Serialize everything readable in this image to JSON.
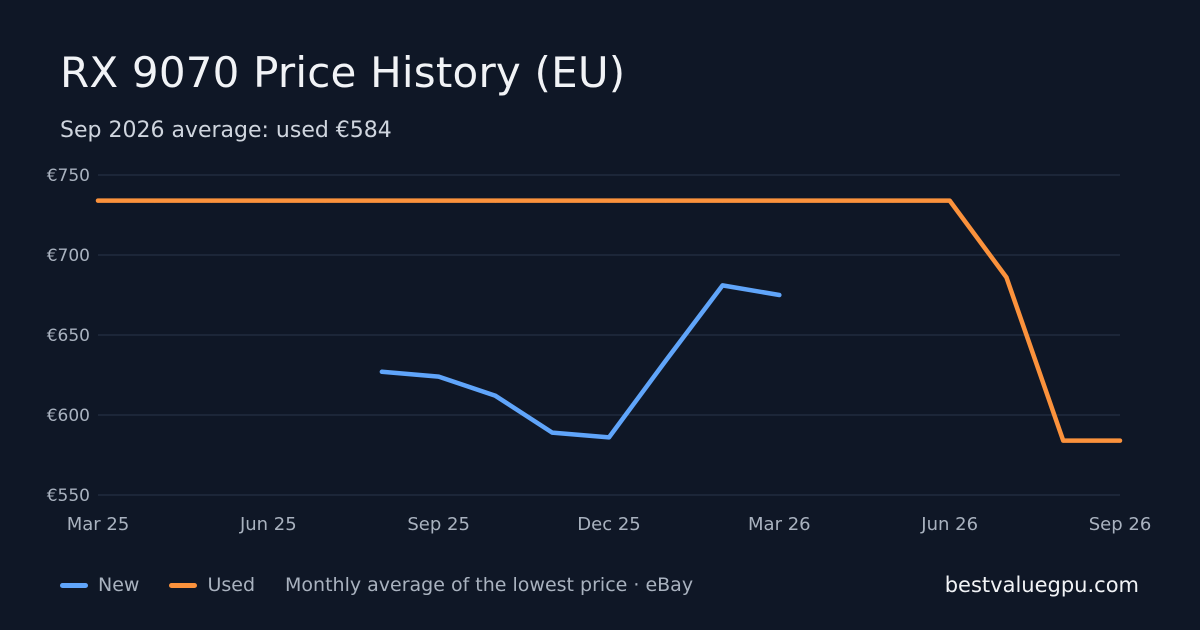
{
  "title": "RX 9070 Price History (EU)",
  "subtitle": "Sep 2026 average: used €584",
  "legend": {
    "new_label": "New",
    "used_label": "Used",
    "note": "Monthly average of the lowest price · eBay"
  },
  "site": "bestvaluegpu.com",
  "colors": {
    "background": "#0f1726",
    "new": "#60a5fa",
    "used": "#fb923c",
    "grid": "#253043",
    "tick": "#a9b2bf"
  },
  "chart_data": {
    "type": "line",
    "x": [
      "Mar 25",
      "Apr 25",
      "May 25",
      "Jun 25",
      "Jul 25",
      "Aug 25",
      "Sep 25",
      "Oct 25",
      "Nov 25",
      "Dec 25",
      "Jan 26",
      "Feb 26",
      "Mar 26",
      "Apr 26",
      "May 26",
      "Jun 26",
      "Jul 26",
      "Aug 26",
      "Sep 26"
    ],
    "x_tick_labels": [
      "Mar 25",
      "Jun 25",
      "Sep 25",
      "Dec 25",
      "Mar 26",
      "Jun 26",
      "Sep 26"
    ],
    "y_tick_labels": [
      "€750",
      "€700",
      "€650",
      "€600",
      "€550"
    ],
    "y_ticks": [
      750,
      700,
      650,
      600,
      550
    ],
    "ylim": [
      550,
      750
    ],
    "grid": true,
    "legend_position": "bottom-left",
    "series": [
      {
        "name": "New",
        "color": "#60a5fa",
        "values": [
          null,
          null,
          null,
          null,
          null,
          627,
          624,
          612,
          589,
          586,
          634,
          681,
          675,
          null,
          null,
          null,
          null,
          null,
          null
        ]
      },
      {
        "name": "Used",
        "color": "#fb923c",
        "values": [
          734,
          734,
          734,
          734,
          734,
          734,
          734,
          734,
          734,
          734,
          734,
          734,
          734,
          734,
          734,
          734,
          686,
          584,
          584
        ]
      }
    ]
  }
}
